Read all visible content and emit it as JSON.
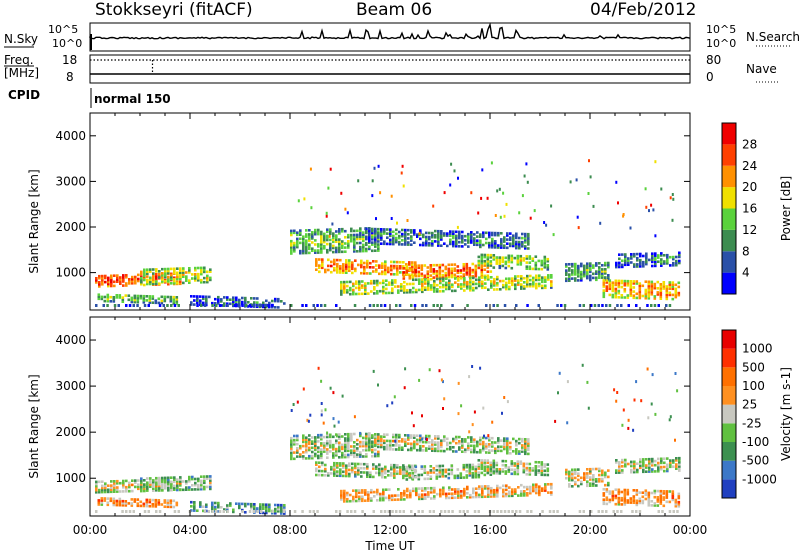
{
  "header": {
    "station": "Stokkseyri (fitACF)",
    "beam": "Beam 06",
    "date": "04/Feb/2012"
  },
  "top_panels": {
    "nsky_label": "N.Sky",
    "nsky_ticks": [
      "10^5",
      "10^0"
    ],
    "nsearch_label": "N.Search",
    "nsearch_ticks": [
      "10^5",
      "10^0"
    ],
    "freq_label_1": "Freq.",
    "freq_label_2": "[MHz]",
    "freq_ticks": [
      "18",
      "8"
    ],
    "nave_label": "Nave",
    "nave_ticks": [
      "80",
      "0"
    ],
    "cpid_label": "CPID",
    "cpid_value": "normal 150"
  },
  "chart_data": [
    {
      "type": "heatmap",
      "name": "power",
      "ylabel": "Slant Range [km]",
      "yticks": [
        "1000",
        "2000",
        "3000",
        "4000"
      ],
      "ylim": [
        180,
        4500
      ],
      "xlim": [
        "00:00",
        "24:00"
      ],
      "colorbar_label": "Power [dB]",
      "colorbar_ticks": [
        "4",
        "8",
        "12",
        "16",
        "20",
        "24",
        "28"
      ],
      "colorbar_colors": [
        "#0000ff",
        "#2a50a8",
        "#3c8c50",
        "#5ad23c",
        "#f0e000",
        "#ff9000",
        "#ff4000",
        "#f00000"
      ],
      "bands": [
        {
          "t0": 0.2,
          "t1": 3.6,
          "r": 800,
          "w": 250,
          "level": 0.85
        },
        {
          "t0": 0.3,
          "t1": 3.5,
          "r": 450,
          "w": 180,
          "level": 0.45
        },
        {
          "t0": 2.0,
          "t1": 4.8,
          "r": 900,
          "w": 350,
          "level": 0.55
        },
        {
          "t0": 4.0,
          "t1": 7.8,
          "r": 380,
          "w": 200,
          "level": 0.25
        },
        {
          "t0": 8.0,
          "t1": 11.5,
          "r": 1650,
          "w": 500,
          "level": 0.45
        },
        {
          "t0": 9.0,
          "t1": 13.0,
          "r": 1150,
          "w": 300,
          "level": 0.75
        },
        {
          "t0": 12.5,
          "t1": 16.0,
          "r": 1000,
          "w": 300,
          "level": 0.8
        },
        {
          "t0": 11.0,
          "t1": 17.5,
          "r": 1800,
          "w": 350,
          "level": 0.3
        },
        {
          "t0": 10.0,
          "t1": 18.5,
          "r": 650,
          "w": 300,
          "level": 0.55
        },
        {
          "t0": 15.5,
          "t1": 18.3,
          "r": 1250,
          "w": 300,
          "level": 0.5
        },
        {
          "t0": 19.0,
          "t1": 20.8,
          "r": 1000,
          "w": 400,
          "level": 0.4
        },
        {
          "t0": 20.5,
          "t1": 23.6,
          "r": 650,
          "w": 400,
          "level": 0.7
        },
        {
          "t0": 21.0,
          "t1": 23.6,
          "r": 1250,
          "w": 300,
          "level": 0.3
        }
      ]
    },
    {
      "type": "heatmap",
      "name": "velocity",
      "ylabel": "Slant Range [km]",
      "xlabel": "Time UT",
      "yticks": [
        "1000",
        "2000",
        "3000",
        "4000"
      ],
      "ylim": [
        180,
        4500
      ],
      "xlim": [
        "00:00",
        "24:00"
      ],
      "xticks": [
        "00:00",
        "04:00",
        "08:00",
        "12:00",
        "16:00",
        "20:00",
        "00:00"
      ],
      "colorbar_label": "Velocity [m s-1]",
      "colorbar_ticks": [
        "1000",
        "500",
        "100",
        "25",
        "-25",
        "-100",
        "-500",
        "-1000"
      ],
      "colorbar_colors": [
        "#2040c0",
        "#3c78c8",
        "#3c9050",
        "#60c040",
        "#c8c8c0",
        "#ff9020",
        "#ff7000",
        "#ff3000",
        "#e80000"
      ],
      "bands": [
        {
          "t0": 0.2,
          "t1": 3.6,
          "r": 800,
          "w": 250,
          "level": 0.55
        },
        {
          "t0": 0.3,
          "t1": 3.5,
          "r": 500,
          "w": 180,
          "level": 0.72
        },
        {
          "t0": 2.0,
          "t1": 4.8,
          "r": 850,
          "w": 300,
          "level": 0.45
        },
        {
          "t0": 4.0,
          "t1": 7.8,
          "r": 380,
          "w": 200,
          "level": 0.35
        },
        {
          "t0": 8.0,
          "t1": 11.5,
          "r": 1650,
          "w": 500,
          "level": 0.5
        },
        {
          "t0": 9.0,
          "t1": 13.0,
          "r": 1200,
          "w": 300,
          "level": 0.5
        },
        {
          "t0": 12.5,
          "t1": 16.0,
          "r": 1100,
          "w": 300,
          "level": 0.5
        },
        {
          "t0": 11.0,
          "t1": 17.5,
          "r": 1800,
          "w": 350,
          "level": 0.5
        },
        {
          "t0": 10.0,
          "t1": 18.5,
          "r": 600,
          "w": 250,
          "level": 0.65
        },
        {
          "t0": 15.5,
          "t1": 18.3,
          "r": 1250,
          "w": 300,
          "level": 0.5
        },
        {
          "t0": 19.0,
          "t1": 20.8,
          "r": 1000,
          "w": 400,
          "level": 0.55
        },
        {
          "t0": 20.5,
          "t1": 23.6,
          "r": 600,
          "w": 350,
          "level": 0.7
        },
        {
          "t0": 21.0,
          "t1": 23.6,
          "r": 1250,
          "w": 300,
          "level": 0.5
        }
      ]
    }
  ]
}
